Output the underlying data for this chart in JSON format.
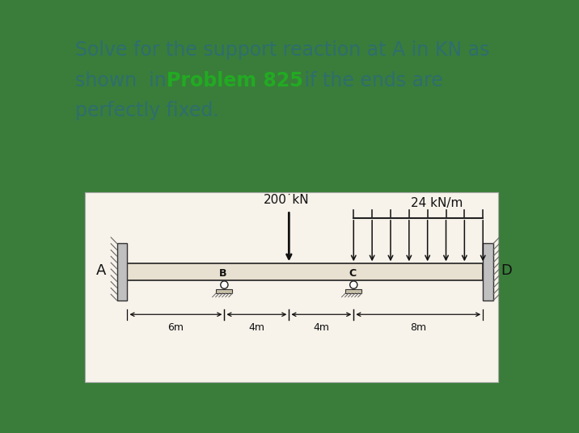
{
  "bg_color": "#c8dff0",
  "outer_bg": "#3a7d3a",
  "diagram_bg": "#f7f2ea",
  "text_color": "#2e6e6e",
  "highlight_color": "#22aa22",
  "load_200": "200˙kN",
  "load_24": "24 kN/m",
  "dim_6m": "6m",
  "dim_4m1": "4m",
  "dim_4m2": "4m",
  "dim_8m": "8m",
  "label_A": "A",
  "label_D": "D",
  "label_B": "B",
  "label_C": "C",
  "fontsize_text": 17,
  "fontsize_diagram": 11
}
